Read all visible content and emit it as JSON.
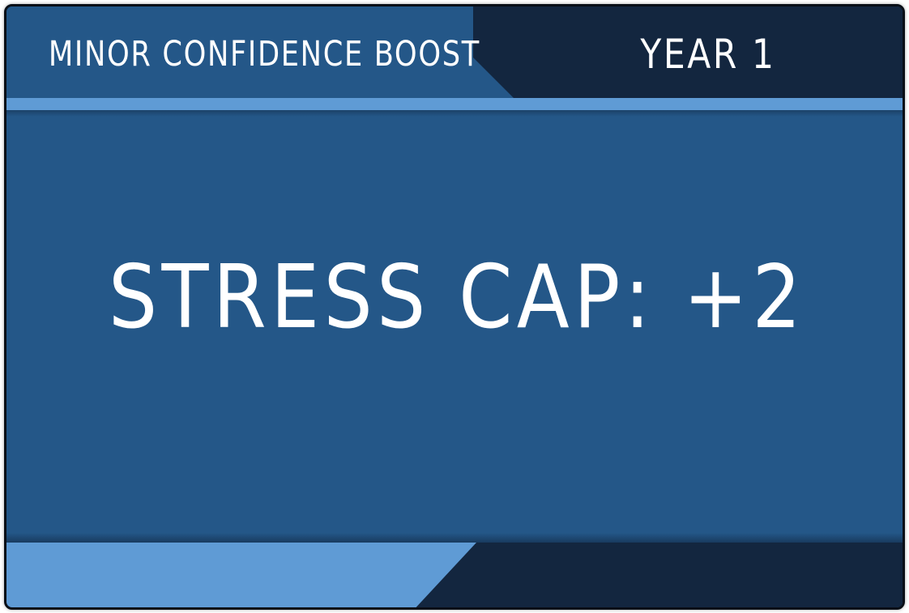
{
  "card": {
    "title": "MINOR CONFIDENCE BOOST",
    "year": "YEAR 1",
    "effect": "STRESS CAP: +2"
  },
  "colors": {
    "panel": "#245788",
    "dark": "#13263f",
    "accent": "#5f9bd5",
    "text": "#ffffff"
  }
}
